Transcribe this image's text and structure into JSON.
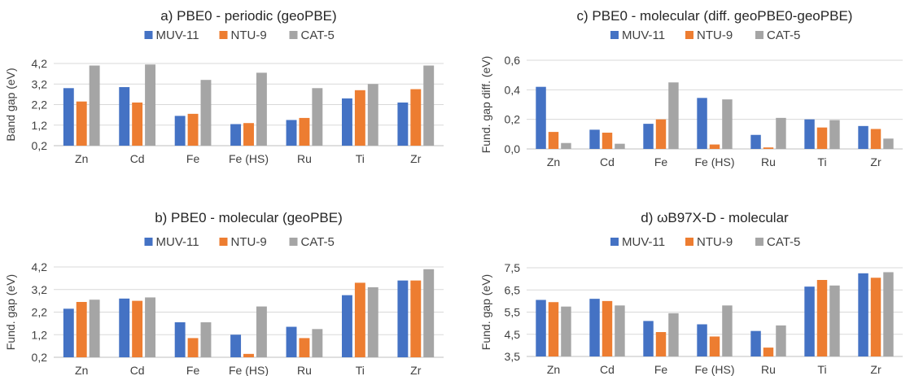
{
  "colors": {
    "MUV-11": "#4472c4",
    "NTU-9": "#ed7d31",
    "CAT-5": "#a5a5a5"
  },
  "chart_data": [
    {
      "type": "bar",
      "title": "a) PBE0 - periodic (geoPBE)",
      "xlabel": "",
      "ylabel": "Band gap (eV)",
      "ylim": [
        0.2,
        4.2
      ],
      "yticks": [
        "0,2",
        "1,2",
        "2,2",
        "3,2",
        "4,2"
      ],
      "ytick_values": [
        0.2,
        1.2,
        2.2,
        3.2,
        4.2
      ],
      "grid": true,
      "legend": "top",
      "categories": [
        "Zn",
        "Cd",
        "Fe",
        "Fe (HS)",
        "Ru",
        "Ti",
        "Zr"
      ],
      "series": [
        {
          "name": "MUV-11",
          "values": [
            3.0,
            3.05,
            1.65,
            1.25,
            1.45,
            2.5,
            2.3
          ]
        },
        {
          "name": "NTU-9",
          "values": [
            2.35,
            2.3,
            1.75,
            1.3,
            1.55,
            2.9,
            2.95
          ]
        },
        {
          "name": "CAT-5",
          "values": [
            4.1,
            4.15,
            3.4,
            3.75,
            3.0,
            3.2,
            4.1
          ]
        }
      ]
    },
    {
      "type": "bar",
      "title": "b) PBE0 - molecular (geoPBE)",
      "xlabel": "",
      "ylabel": "Fund. gap (eV)",
      "ylim": [
        0.2,
        4.2
      ],
      "yticks": [
        "0,2",
        "1,2",
        "2,2",
        "3,2",
        "4,2"
      ],
      "ytick_values": [
        0.2,
        1.2,
        2.2,
        3.2,
        4.2
      ],
      "grid": true,
      "legend": "top",
      "categories": [
        "Zn",
        "Cd",
        "Fe",
        "Fe (HS)",
        "Ru",
        "Ti",
        "Zr"
      ],
      "series": [
        {
          "name": "MUV-11",
          "values": [
            2.35,
            2.8,
            1.75,
            1.2,
            1.55,
            2.95,
            3.6
          ]
        },
        {
          "name": "NTU-9",
          "values": [
            2.65,
            2.7,
            1.05,
            0.35,
            1.05,
            3.5,
            3.6
          ]
        },
        {
          "name": "CAT-5",
          "values": [
            2.75,
            2.85,
            1.75,
            2.45,
            1.45,
            3.3,
            4.1
          ]
        }
      ]
    },
    {
      "type": "bar",
      "title": "c) PBE0 - molecular (diff. geoPBE0-geoPBE)",
      "xlabel": "",
      "ylabel": "Fund. gap diff. (eV)",
      "ylim": [
        0,
        0.6
      ],
      "yticks": [
        "0,0",
        "0,2",
        "0,4",
        "0,6"
      ],
      "ytick_values": [
        0,
        0.2,
        0.4,
        0.6
      ],
      "grid": true,
      "legend": "top",
      "categories": [
        "Zn",
        "Cd",
        "Fe",
        "Fe (HS)",
        "Ru",
        "Ti",
        "Zr"
      ],
      "series": [
        {
          "name": "MUV-11",
          "values": [
            0.42,
            0.13,
            0.17,
            0.345,
            0.095,
            0.2,
            0.155
          ]
        },
        {
          "name": "NTU-9",
          "values": [
            0.115,
            0.11,
            0.2,
            0.03,
            0.01,
            0.145,
            0.135
          ]
        },
        {
          "name": "CAT-5",
          "values": [
            0.04,
            0.035,
            0.45,
            0.335,
            0.21,
            0.195,
            0.07
          ]
        }
      ]
    },
    {
      "type": "bar",
      "title": "d) ωB97X-D - molecular",
      "xlabel": "",
      "ylabel": "Fund. gap (eV)",
      "ylim": [
        3.5,
        7.5
      ],
      "yticks": [
        "3,5",
        "4,5",
        "5,5",
        "6,5",
        "7,5"
      ],
      "ytick_values": [
        3.5,
        4.5,
        5.5,
        6.5,
        7.5
      ],
      "grid": true,
      "legend": "top",
      "categories": [
        "Zn",
        "Cd",
        "Fe",
        "Fe (HS)",
        "Ru",
        "Ti",
        "Zr"
      ],
      "series": [
        {
          "name": "MUV-11",
          "values": [
            6.05,
            6.1,
            5.1,
            4.95,
            4.65,
            6.65,
            7.25
          ]
        },
        {
          "name": "NTU-9",
          "values": [
            5.95,
            6.0,
            4.6,
            4.4,
            3.9,
            6.95,
            7.05
          ]
        },
        {
          "name": "CAT-5",
          "values": [
            5.75,
            5.8,
            5.45,
            5.8,
            4.9,
            6.7,
            7.3
          ]
        }
      ]
    }
  ]
}
